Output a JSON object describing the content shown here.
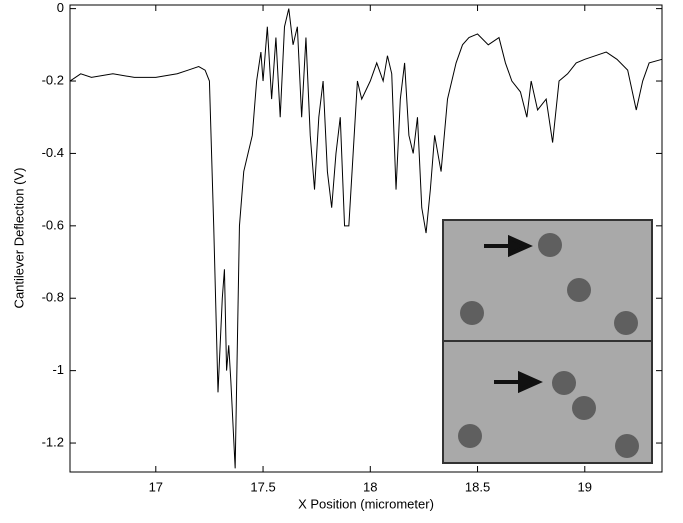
{
  "chart_data": {
    "type": "line",
    "xlabel": "X Position (micrometer)",
    "ylabel": "Cantilever Deflection (V)",
    "xlim": [
      16.6,
      19.36
    ],
    "ylim": [
      -1.28,
      0.01
    ],
    "xticks": [
      17,
      17.5,
      18,
      18.5,
      19
    ],
    "yticks": [
      0,
      -0.2,
      -0.4,
      -0.6,
      -0.8,
      -1,
      -1.2
    ],
    "color": "#000000",
    "x": [
      16.6,
      16.65,
      16.7,
      16.8,
      16.9,
      17.0,
      17.1,
      17.15,
      17.2,
      17.23,
      17.25,
      17.27,
      17.29,
      17.31,
      17.32,
      17.33,
      17.34,
      17.35,
      17.37,
      17.39,
      17.41,
      17.43,
      17.45,
      17.47,
      17.49,
      17.5,
      17.52,
      17.54,
      17.56,
      17.58,
      17.6,
      17.62,
      17.64,
      17.66,
      17.68,
      17.7,
      17.72,
      17.74,
      17.76,
      17.78,
      17.8,
      17.82,
      17.84,
      17.86,
      17.88,
      17.9,
      17.92,
      17.94,
      17.96,
      18.0,
      18.03,
      18.06,
      18.08,
      18.1,
      18.12,
      18.14,
      18.16,
      18.18,
      18.2,
      18.22,
      18.24,
      18.26,
      18.28,
      18.3,
      18.33,
      18.36,
      18.4,
      18.43,
      18.46,
      18.5,
      18.55,
      18.6,
      18.63,
      18.66,
      18.7,
      18.73,
      18.75,
      18.78,
      18.82,
      18.85,
      18.88,
      18.92,
      18.96,
      19.0,
      19.05,
      19.1,
      19.15,
      19.2,
      19.24,
      19.27,
      19.3,
      19.36
    ],
    "values": [
      -0.2,
      -0.18,
      -0.19,
      -0.18,
      -0.19,
      -0.19,
      -0.18,
      -0.17,
      -0.16,
      -0.17,
      -0.2,
      -0.6,
      -1.06,
      -0.8,
      -0.72,
      -1.0,
      -0.93,
      -1.03,
      -1.27,
      -0.6,
      -0.45,
      -0.4,
      -0.35,
      -0.2,
      -0.12,
      -0.2,
      -0.05,
      -0.25,
      -0.08,
      -0.3,
      -0.05,
      0.0,
      -0.1,
      -0.05,
      -0.3,
      -0.08,
      -0.35,
      -0.5,
      -0.3,
      -0.2,
      -0.45,
      -0.55,
      -0.4,
      -0.3,
      -0.6,
      -0.6,
      -0.4,
      -0.2,
      -0.25,
      -0.2,
      -0.15,
      -0.2,
      -0.13,
      -0.18,
      -0.5,
      -0.25,
      -0.15,
      -0.35,
      -0.4,
      -0.3,
      -0.55,
      -0.62,
      -0.5,
      -0.35,
      -0.45,
      -0.25,
      -0.15,
      -0.1,
      -0.08,
      -0.07,
      -0.1,
      -0.08,
      -0.15,
      -0.2,
      -0.23,
      -0.3,
      -0.2,
      -0.28,
      -0.25,
      -0.37,
      -0.2,
      -0.18,
      -0.15,
      -0.14,
      -0.13,
      -0.12,
      -0.14,
      -0.17,
      -0.28,
      -0.2,
      -0.15,
      -0.14
    ]
  }
}
